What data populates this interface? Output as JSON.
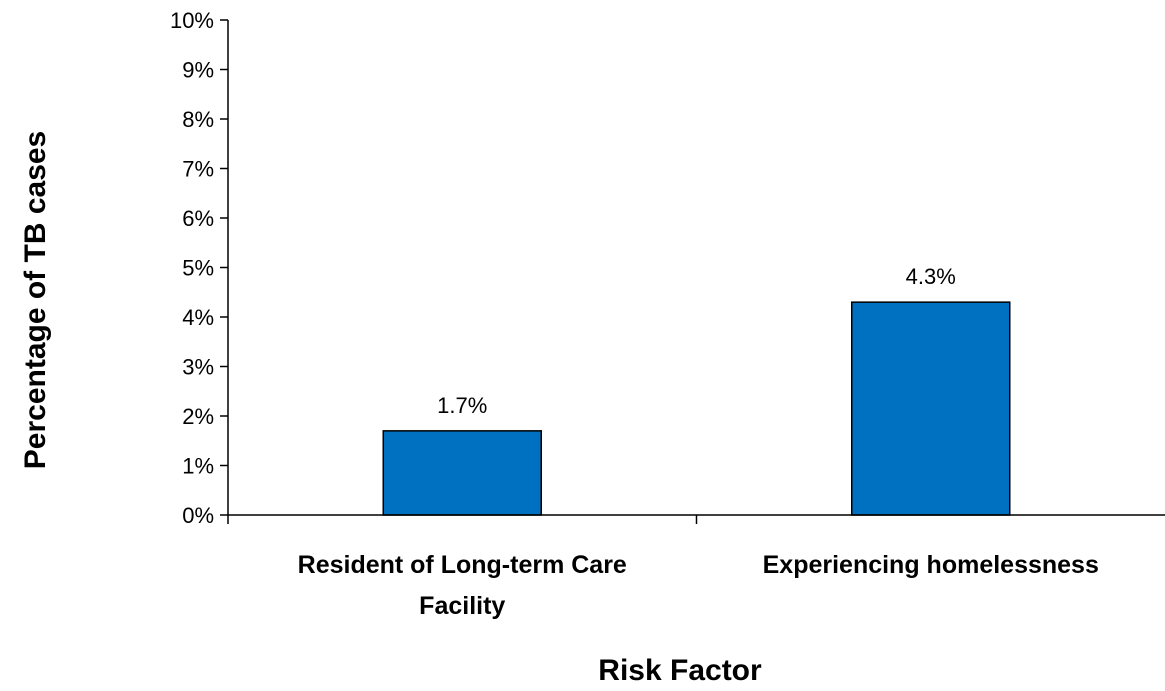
{
  "chart_data": {
    "type": "bar",
    "categories": [
      [
        "Resident of Long-term Care",
        "Facility"
      ],
      [
        "Experiencing homelessness"
      ]
    ],
    "values": [
      1.7,
      4.3
    ],
    "data_labels": [
      "1.7%",
      "4.3%"
    ],
    "xlabel": "Risk Factor",
    "ylabel": "Percentage of TB cases",
    "ylim": [
      0,
      10
    ],
    "y_ticks": [
      "0%",
      "1%",
      "2%",
      "3%",
      "4%",
      "5%",
      "6%",
      "7%",
      "8%",
      "9%",
      "10%"
    ],
    "bar_color": "#0070C0",
    "grid": false,
    "legend": "none"
  }
}
